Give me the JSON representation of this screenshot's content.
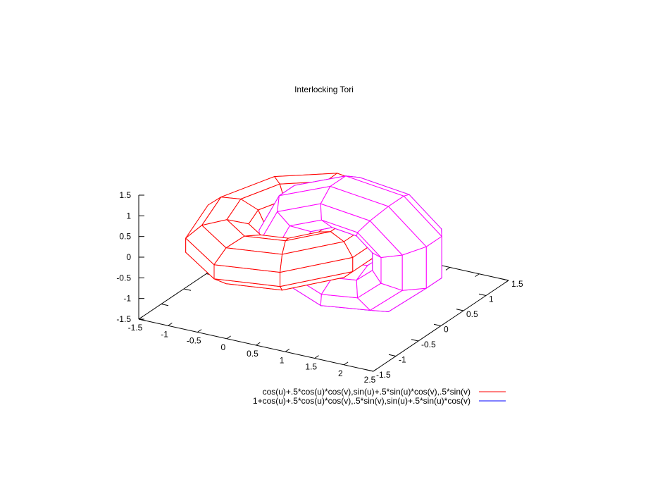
{
  "chart_data": {
    "type": "surface",
    "title": "Interlocking Tori",
    "parametric": true,
    "hidden3d": true,
    "urange": [
      "-pi",
      "pi"
    ],
    "vrange": [
      "-pi",
      "pi"
    ],
    "isosamples": [
      10,
      10
    ],
    "xlim": [
      -1.5,
      2.5
    ],
    "ylim": [
      -1.5,
      1.5
    ],
    "zlim": [
      -1.5,
      1.5
    ],
    "x_ticks": [
      "-1.5",
      "-1",
      "-0.5",
      "0",
      "0.5",
      "1",
      "1.5",
      "2",
      "2.5"
    ],
    "y_ticks": [
      "-1.5",
      "-1",
      "-0.5",
      "0",
      "0.5",
      "1",
      "1.5"
    ],
    "z_ticks": [
      "-1.5",
      "-1",
      "-0.5",
      "0",
      "0.5",
      "1",
      "1.5"
    ],
    "legend_position": "bottom-right",
    "series": [
      {
        "name": "cos(u)+.5*cos(u)*cos(v),sin(u)+.5*sin(u)*cos(v),.5*sin(v)",
        "color": "#ff0000",
        "back_color": "#ff0000"
      },
      {
        "name": "1+cos(u)+.5*cos(u)*cos(v),.5*sin(v),sin(u)+.5*sin(u)*cos(v)",
        "color": "#0000ff",
        "surface_color": "#ff00ff"
      }
    ]
  }
}
